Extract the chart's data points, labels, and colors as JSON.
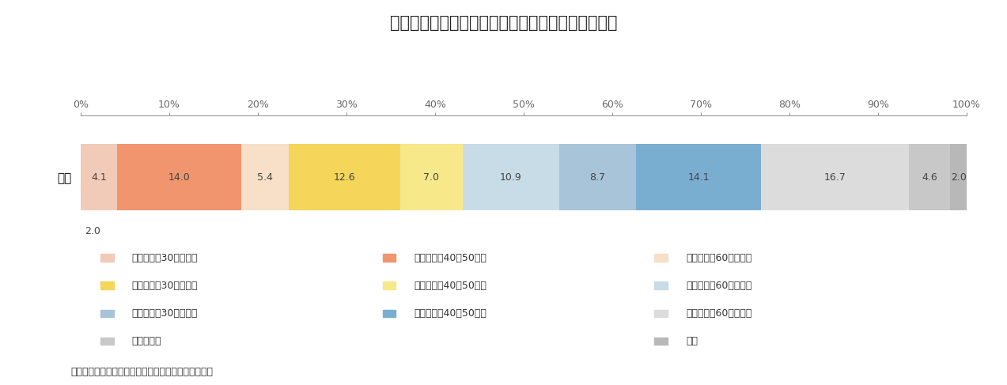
{
  "title": "図表２　世帯主年齢を加味した世帯類型別の構成比",
  "row_label": "全国",
  "values": [
    4.1,
    14.0,
    5.4,
    12.6,
    7.0,
    10.9,
    8.7,
    14.1,
    16.7,
    4.6,
    2.0
  ],
  "colors": [
    "#f2cbb8",
    "#f0956e",
    "#f7dfc8",
    "#f5d55a",
    "#f7e88a",
    "#c8dce8",
    "#a8c4d8",
    "#7aaed0",
    "#dcdcdc",
    "#c8c8c8",
    "#b8b8b8"
  ],
  "legend_labels": [
    "夫婦のみ（30代以下）",
    "夫婦のみ（40～50代）",
    "夫婦のみ（60代以上）",
    "夫婦と子（30代以下）",
    "夫婦と子（40～50代）",
    "夫婦と子（60代以上）",
    "単独世帯（30代以下）",
    "単独世帯（40～50代）",
    "単独世帯（60代以上）",
    "その他世帯",
    "不詳"
  ],
  "legend_layout": [
    [
      0,
      1,
      2
    ],
    [
      3,
      4,
      5
    ],
    [
      6,
      7,
      8
    ],
    [
      9,
      null,
      10
    ]
  ],
  "source_text": "出所：総務省統計局「令和２年　国勢調査」より作成",
  "xtick_labels": [
    "0%",
    "10%",
    "20%",
    "30%",
    "40%",
    "50%",
    "60%",
    "70%",
    "80%",
    "90%",
    "100%"
  ],
  "background_color": "#ffffff",
  "title_fontsize": 15,
  "bar_label_fontsize": 9,
  "axis_label_fontsize": 9,
  "legend_fontsize": 9,
  "source_fontsize": 9
}
